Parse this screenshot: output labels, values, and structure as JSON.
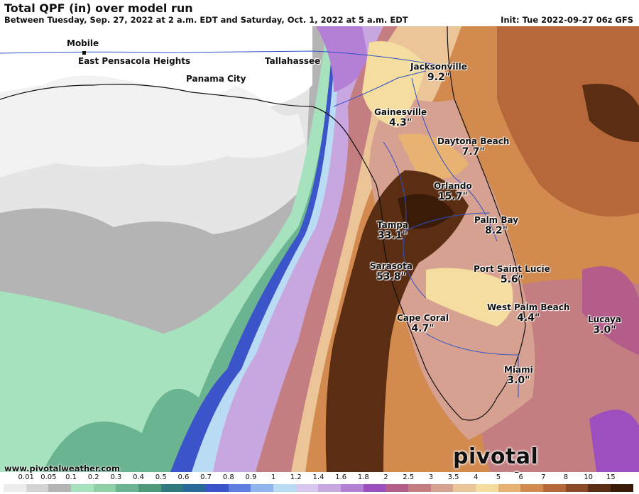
{
  "header": {
    "title": "Total QPF (in) over model run",
    "subtitle": "Between Tuesday, Sep. 27, 2022 at 2 a.m. EDT and Saturday, Oct. 1, 2022 at 5 a.m. EDT",
    "init": "Init: Tue 2022-09-27 06z GFS"
  },
  "cities": [
    {
      "key": "mobile",
      "name": "Mobile",
      "value": ""
    },
    {
      "key": "east_pensacola",
      "name": "East Pensacola Heights",
      "value": ""
    },
    {
      "key": "tallahassee",
      "name": "Tallahassee",
      "value": ""
    },
    {
      "key": "panama_city",
      "name": "Panama City",
      "value": ""
    },
    {
      "key": "jacksonville",
      "name": "Jacksonville",
      "value": "9.2\""
    },
    {
      "key": "gainesville",
      "name": "Gainesville",
      "value": "4.3\""
    },
    {
      "key": "daytona",
      "name": "Daytona Beach",
      "value": "7.7\""
    },
    {
      "key": "orlando",
      "name": "Orlando",
      "value": "15.7\""
    },
    {
      "key": "palm_bay",
      "name": "Palm Bay",
      "value": "8.2\""
    },
    {
      "key": "tampa",
      "name": "Tampa",
      "value": "33.1\""
    },
    {
      "key": "sarasota",
      "name": "Sarasota",
      "value": "53.8\""
    },
    {
      "key": "port_st_lucie",
      "name": "Port Saint Lucie",
      "value": "5.6\""
    },
    {
      "key": "west_palm",
      "name": "West Palm Beach",
      "value": "4.4\""
    },
    {
      "key": "cape_coral",
      "name": "Cape Coral",
      "value": "4.7\""
    },
    {
      "key": "lucaya",
      "name": "Lucaya",
      "value": "3.0\""
    },
    {
      "key": "miami",
      "name": "Miami",
      "value": "3.0\""
    }
  ],
  "footer": {
    "credit": "www.pivotalweather.com",
    "brand": "pivotal weather"
  },
  "legend": {
    "labels": [
      "0.01",
      "0.05",
      "0.1",
      "0.2",
      "0.3",
      "0.4",
      "0.5",
      "0.6",
      "0.7",
      "0.8",
      "0.9",
      "1",
      "1.2",
      "1.4",
      "1.6",
      "1.8",
      "2",
      "2.5",
      "3",
      "3.5",
      "4",
      "5",
      "6",
      "7",
      "8",
      "10",
      "15"
    ],
    "colors": [
      "#ededed",
      "#d4d4d4",
      "#b4b4b4",
      "#a6e2bd",
      "#8ed0a6",
      "#6bb491",
      "#4e9a7a",
      "#2e7a7f",
      "#2a6a9b",
      "#3c54c9",
      "#5f7fe0",
      "#8fb4ee",
      "#b9dcf4",
      "#d8c7ee",
      "#c8a6e0",
      "#b480d6",
      "#9e4fbe",
      "#b45d8a",
      "#c47d80",
      "#d6a191",
      "#ebc498",
      "#f4dd9e",
      "#e8b273",
      "#d28a4f",
      "#b7683a",
      "#8b4a26",
      "#5b2e13",
      "#3a1b08"
    ]
  }
}
